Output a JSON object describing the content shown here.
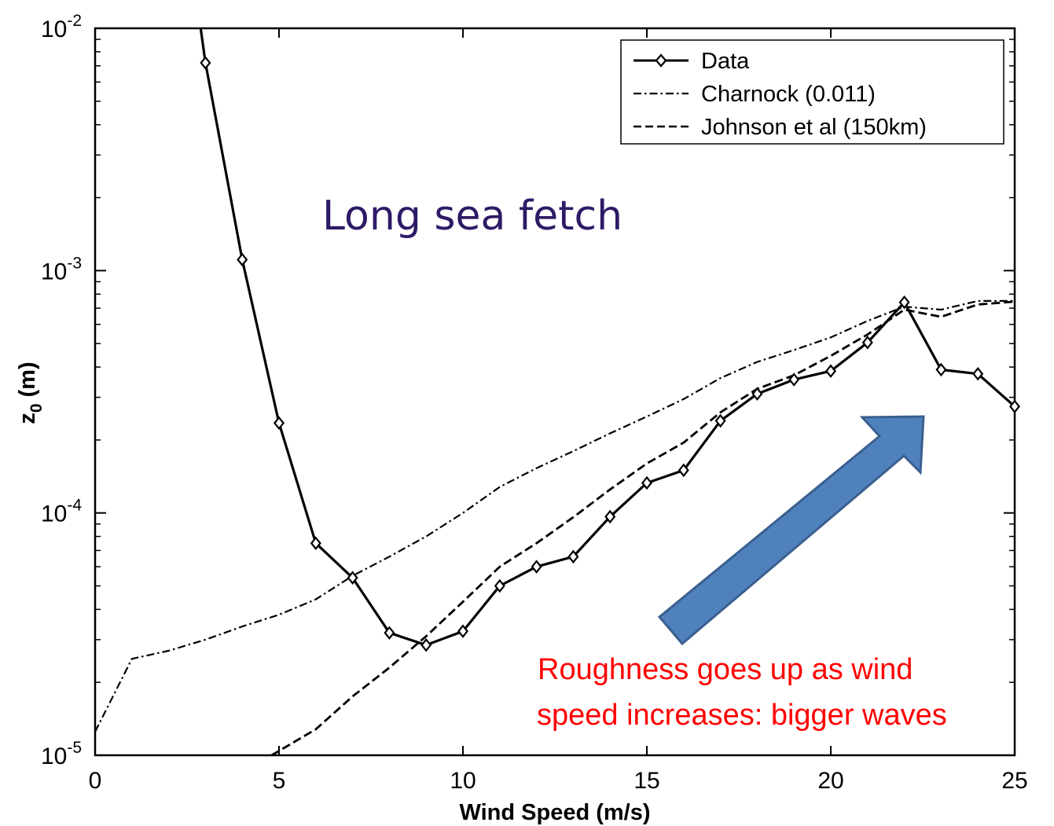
{
  "chart_data": {
    "type": "line",
    "xlabel": "Wind Speed (m/s)",
    "ylabel_main": "z",
    "ylabel_sub": "0",
    "ylabel_unit": " (m)",
    "xlim": [
      0,
      25
    ],
    "ylim": [
      1e-05,
      0.01
    ],
    "yscale": "log",
    "xticks": [
      0,
      5,
      10,
      15,
      20,
      25
    ],
    "xtick_labels": [
      "0",
      "5",
      "10",
      "15",
      "20",
      "25"
    ],
    "yticks": [
      {
        "value": 1e-05,
        "base": "10",
        "exp": "-5"
      },
      {
        "value": 0.0001,
        "base": "10",
        "exp": "-4"
      },
      {
        "value": 0.001,
        "base": "10",
        "exp": "-3"
      },
      {
        "value": 0.01,
        "base": "10",
        "exp": "-2"
      }
    ],
    "grid": false,
    "legend_position": "top-right",
    "series": [
      {
        "name": "Data",
        "style": "solid",
        "marker": "diamond",
        "x": [
          3,
          4,
          5,
          6,
          7,
          8,
          9,
          10,
          11,
          12,
          13,
          14,
          15,
          16,
          17,
          18,
          19,
          20,
          21,
          22,
          23,
          24,
          25
        ],
        "y": [
          0.0072,
          0.00111,
          0.000235,
          7.5e-05,
          5.4e-05,
          3.2e-05,
          2.85e-05,
          3.25e-05,
          5e-05,
          6e-05,
          6.6e-05,
          9.65e-05,
          0.000133,
          0.00015,
          0.00024,
          0.00031,
          0.000355,
          0.000385,
          0.000505,
          0.00074,
          0.00039,
          0.000375,
          0.000275
        ],
        "lead_in": {
          "x": [
            2.85,
            3
          ],
          "y": [
            0.0105,
            0.0072
          ]
        }
      },
      {
        "name": "Charnock (0.011)",
        "style": "dashdot",
        "x": [
          0,
          1,
          2,
          3,
          4,
          5,
          6,
          7,
          8,
          9,
          10,
          11,
          12,
          13,
          14,
          15,
          16,
          17,
          18,
          19,
          20,
          21,
          22,
          23,
          24,
          25
        ],
        "y": [
          1.25e-05,
          2.5e-05,
          2.7e-05,
          3e-05,
          3.4e-05,
          3.8e-05,
          4.4e-05,
          5.5e-05,
          6.6e-05,
          8e-05,
          0.0001,
          0.000128,
          0.000153,
          0.00018,
          0.000213,
          0.00025,
          0.000295,
          0.00036,
          0.00042,
          0.00047,
          0.00053,
          0.00062,
          0.00071,
          0.00069,
          0.00075,
          0.00075
        ]
      },
      {
        "name": "Johnson et al (150km)",
        "style": "dashed",
        "x": [
          4.8,
          6,
          7,
          8,
          9,
          10,
          11,
          12,
          13,
          14,
          15,
          16,
          17,
          18,
          19,
          20,
          21,
          22,
          23,
          24,
          25
        ],
        "y": [
          1e-05,
          1.28e-05,
          1.75e-05,
          2.3e-05,
          3.1e-05,
          4.3e-05,
          6e-05,
          7.5e-05,
          9.6e-05,
          0.000125,
          0.00016,
          0.000195,
          0.00026,
          0.000325,
          0.00037,
          0.000445,
          0.000545,
          0.00069,
          0.000645,
          0.000725,
          0.000745
        ]
      }
    ],
    "annotations": {
      "title_text": "Long sea fetch",
      "title_color": "#2e1a66",
      "note_line1": "Roughness goes up as wind",
      "note_line2": "speed increases: bigger waves",
      "note_color": "#ff0000",
      "arrow_color": "#4f81bd",
      "arrow_border": "#3a5f8f"
    }
  }
}
